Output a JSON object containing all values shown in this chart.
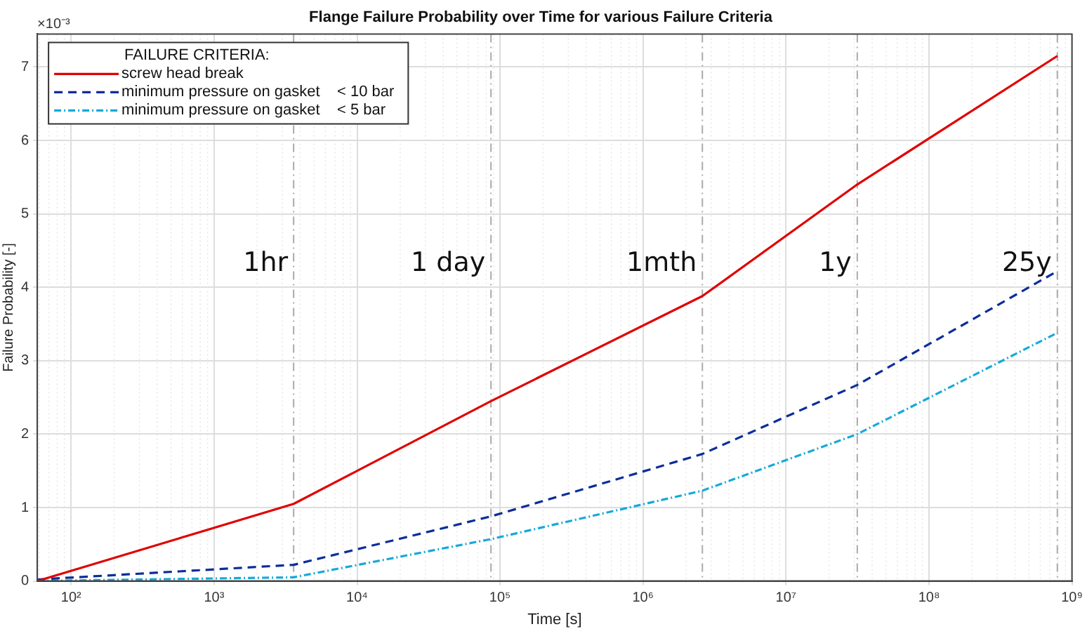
{
  "chart_data": {
    "type": "line",
    "title": "Flange Failure Probability over Time for various Failure Criteria",
    "xlabel": "Time [s]",
    "ylabel": "Failure Probability [-]",
    "legend_title": "FAILURE CRITERIA:",
    "annotations": [
      "×10⁻³"
    ],
    "x": [
      58,
      3600,
      86400,
      2600000,
      31500000,
      790000000
    ],
    "series": [
      {
        "name": "screw head break",
        "color": "#e00000",
        "line_style": "solid",
        "values": [
          0,
          1.05,
          2.45,
          3.88,
          5.4,
          7.15
        ]
      },
      {
        "name": "minimum pressure on gasket    < 10 bar",
        "color": "#0a2d9a",
        "line_style": "dashed",
        "values": [
          0.02,
          0.22,
          0.88,
          1.73,
          2.67,
          4.22
        ]
      },
      {
        "name": "minimum pressure on gasket    < 5 bar",
        "color": "#17a9d9",
        "line_style": "dotted",
        "values": [
          0,
          0.05,
          0.57,
          1.23,
          2.0,
          3.38
        ]
      }
    ],
    "xlim": [
      58,
      1000000000
    ],
    "ylim": [
      0,
      7.45
    ],
    "xticks": [
      {
        "value": 100,
        "label": "10²"
      },
      {
        "value": 1000,
        "label": "10³"
      },
      {
        "value": 10000,
        "label": "10⁴"
      },
      {
        "value": 100000,
        "label": "10⁵"
      },
      {
        "value": 1000000,
        "label": "10⁶"
      },
      {
        "value": 10000000,
        "label": "10⁷"
      },
      {
        "value": 100000000,
        "label": "10⁸"
      },
      {
        "value": 1000000000,
        "label": "10⁹"
      }
    ],
    "yticks": [
      0,
      1,
      2,
      3,
      4,
      5,
      6,
      7
    ],
    "ref_lines": [
      {
        "axis": "x",
        "value": 3600,
        "label": "1hr",
        "color": "#aaaaaa"
      },
      {
        "axis": "x",
        "value": 86400,
        "label": "1 day",
        "color": "#aaaaaa"
      },
      {
        "axis": "x",
        "value": 2600000,
        "label": "1mth",
        "color": "#aaaaaa"
      },
      {
        "axis": "x",
        "value": 31500000,
        "label": "1y",
        "color": "#aaaaaa"
      },
      {
        "axis": "x",
        "value": 790000000,
        "label": "25y",
        "color": "#aaaaaa"
      }
    ],
    "log": "x",
    "grid": true,
    "legend": "top left"
  }
}
